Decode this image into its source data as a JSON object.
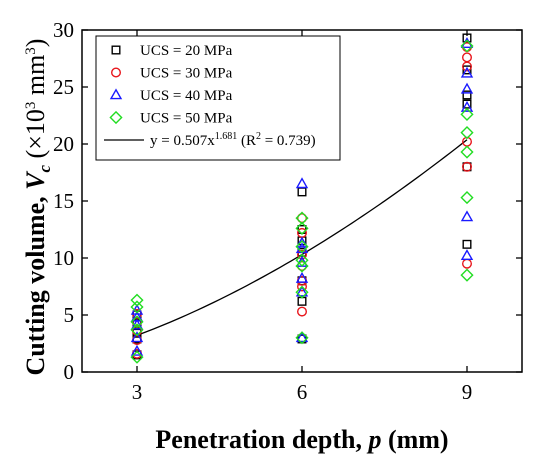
{
  "chart_data": {
    "type": "scatter",
    "xlabel": "Penetration depth, p (mm)",
    "ylabel": "Cutting volume, V_c (×10^3 mm^3)",
    "xlim": [
      2,
      10
    ],
    "ylim": [
      0,
      30
    ],
    "xticks": [
      "3",
      "6",
      "9"
    ],
    "yticks": [
      "0",
      "5",
      "10",
      "15",
      "20",
      "25",
      "30"
    ],
    "grid": false,
    "legend_position": "top-left",
    "series": [
      {
        "name": "UCS = 20 MPa",
        "marker": "square",
        "color": "#000000",
        "x": [
          3,
          3,
          3,
          3,
          3,
          6,
          6,
          6,
          6,
          6,
          6,
          6,
          9,
          9,
          9,
          9,
          9,
          9
        ],
        "y": [
          2.9,
          3.4,
          4.2,
          5.0,
          1.5,
          2.9,
          6.2,
          10.5,
          11.5,
          12.5,
          15.8,
          8.0,
          11.2,
          18.0,
          23.5,
          24.3,
          26.5,
          29.3
        ]
      },
      {
        "name": "UCS = 30 MPa",
        "marker": "circle",
        "color": "#e8161c",
        "x": [
          3,
          3,
          3,
          3,
          3,
          6,
          6,
          6,
          6,
          6,
          6,
          6,
          9,
          9,
          9,
          9,
          9,
          9
        ],
        "y": [
          1.6,
          2.8,
          3.6,
          4.4,
          5.1,
          5.3,
          7.5,
          8.0,
          10.3,
          12.2,
          13.5,
          9.3,
          9.5,
          18.0,
          20.2,
          26.8,
          27.6,
          28.5
        ]
      },
      {
        "name": "UCS = 40 MPa",
        "marker": "triangle",
        "color": "#1a1aff",
        "x": [
          3,
          3,
          3,
          3,
          3,
          6,
          6,
          6,
          6,
          6,
          6,
          6,
          9,
          9,
          9,
          9,
          9,
          9
        ],
        "y": [
          1.8,
          3.0,
          4.1,
          4.8,
          5.4,
          3.0,
          7.0,
          8.2,
          10.8,
          11.3,
          16.5,
          9.6,
          10.2,
          13.6,
          23.2,
          24.8,
          26.2,
          28.8
        ]
      },
      {
        "name": "UCS = 50 MPa",
        "marker": "diamond",
        "color": "#22dd22",
        "x": [
          3,
          3,
          3,
          3,
          3,
          6,
          6,
          6,
          6,
          6,
          6,
          6,
          9,
          9,
          9,
          9,
          9,
          9
        ],
        "y": [
          1.3,
          3.7,
          4.4,
          5.7,
          6.3,
          3.0,
          7.0,
          9.3,
          9.8,
          11.0,
          13.5,
          12.6,
          8.5,
          15.3,
          19.3,
          21.0,
          22.6,
          28.6
        ]
      },
      {
        "name": "y = 0.507x^1.681 (R^2 = 0.739)",
        "type": "line",
        "color": "#000000",
        "fit": {
          "a": 0.507,
          "b": 1.681,
          "x_range": [
            3,
            9
          ],
          "r2": 0.739
        }
      }
    ]
  }
}
